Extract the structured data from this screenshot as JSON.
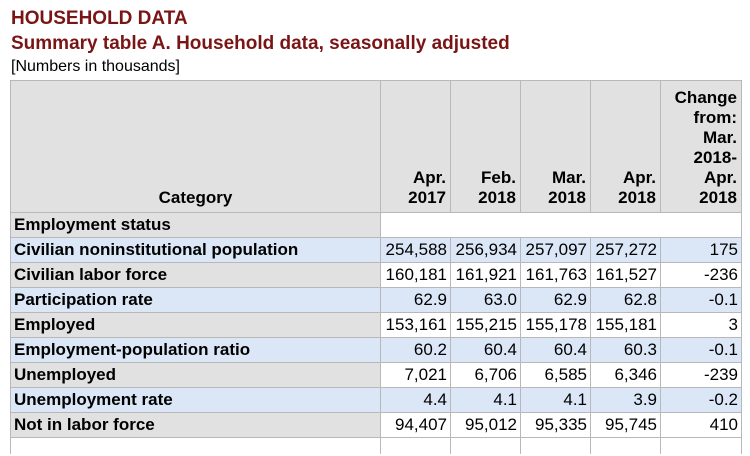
{
  "header": {
    "title": "HOUSEHOLD DATA",
    "subtitle": "Summary table A. Household data, seasonally adjusted",
    "note": "[Numbers in thousands]"
  },
  "table": {
    "columns": [
      "Category",
      "Apr. 2017",
      "Feb. 2018",
      "Mar. 2018",
      "Apr. 2018",
      "Change from: Mar. 2018- Apr. 2018"
    ],
    "column_lines": [
      [
        "Category"
      ],
      [
        "Apr.",
        "2017"
      ],
      [
        "Feb.",
        "2018"
      ],
      [
        "Mar.",
        "2018"
      ],
      [
        "Apr.",
        "2018"
      ],
      [
        "Change",
        "from:",
        "Mar.",
        "2018-",
        "Apr.",
        "2018"
      ]
    ],
    "section": "Employment status",
    "rows": [
      {
        "label": "Civilian noninstitutional population",
        "values": [
          "254,588",
          "256,934",
          "257,097",
          "257,272",
          "175"
        ]
      },
      {
        "label": "Civilian labor force",
        "values": [
          "160,181",
          "161,921",
          "161,763",
          "161,527",
          "-236"
        ]
      },
      {
        "label": "Participation rate",
        "values": [
          "62.9",
          "63.0",
          "62.9",
          "62.8",
          "-0.1"
        ]
      },
      {
        "label": "Employed",
        "values": [
          "153,161",
          "155,215",
          "155,178",
          "155,181",
          "3"
        ]
      },
      {
        "label": "Employment-population ratio",
        "values": [
          "60.2",
          "60.4",
          "60.4",
          "60.3",
          "-0.1"
        ]
      },
      {
        "label": "Unemployed",
        "values": [
          "7,021",
          "6,706",
          "6,585",
          "6,346",
          "-239"
        ]
      },
      {
        "label": "Unemployment rate",
        "values": [
          "4.4",
          "4.1",
          "4.1",
          "3.9",
          "-0.2"
        ]
      },
      {
        "label": "Not in labor force",
        "values": [
          "94,407",
          "95,012",
          "95,335",
          "95,745",
          "410"
        ]
      }
    ]
  }
}
